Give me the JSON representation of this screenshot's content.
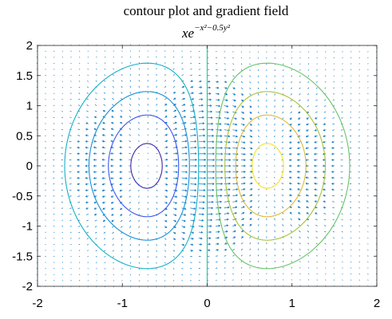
{
  "chart_data": {
    "type": "contour",
    "title": "contour plot and gradient field",
    "subtitle": {
      "base": "xe",
      "exponent": "−x²−0.5y²"
    },
    "function": "x*exp(-x^2-0.5*y^2)",
    "xlim": [
      -2,
      2
    ],
    "ylim": [
      -2,
      2
    ],
    "xticks": [
      -2,
      -1,
      0,
      1,
      2
    ],
    "xtick_labels": [
      "-2",
      "-1",
      "0",
      "1",
      "2"
    ],
    "yticks": [
      -2,
      -1.5,
      -1,
      -0.5,
      0,
      0.5,
      1,
      1.5,
      2
    ],
    "ytick_labels": [
      "-2",
      "-1.5",
      "-1",
      "-0.5",
      "0",
      "0.5",
      "1",
      "1.5",
      "2"
    ],
    "contour_levels": [
      -0.4,
      -0.3,
      -0.2,
      -0.1,
      0,
      0.1,
      0.2,
      0.3,
      0.4
    ],
    "contour_colors": [
      "#3d26a8",
      "#3a58f0",
      "#1890d8",
      "#14b0c8",
      "#2fbfa0",
      "#66c466",
      "#a8c23a",
      "#e0b838",
      "#f7e31d"
    ],
    "quiver_color": "#0072bd",
    "quiver_grid_step": 0.1,
    "grid": false,
    "box": true
  }
}
